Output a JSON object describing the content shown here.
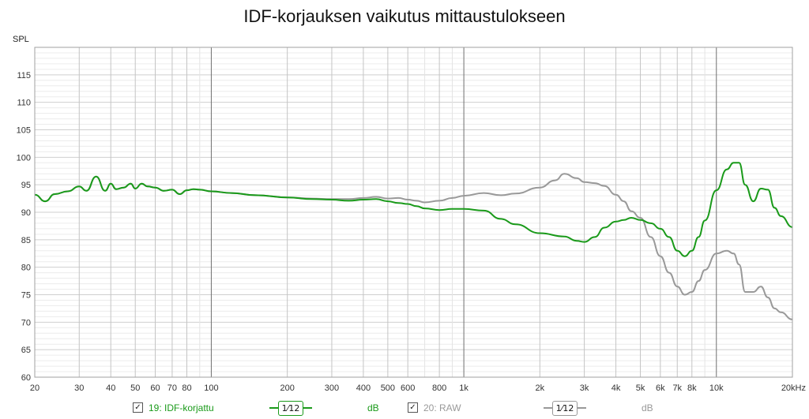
{
  "title": "IDF-korjauksen vaikutus mittaustulokseen",
  "colors": {
    "corrected": "#1a9a1a",
    "raw": "#999999"
  },
  "legend": {
    "items": [
      {
        "checkbox": "✓",
        "label": "19: IDF-korjattu",
        "smoothing": "1⁄12",
        "unit": "dB"
      },
      {
        "checkbox": "✓",
        "label": "20: RAW",
        "smoothing": "1⁄12",
        "unit": "dB"
      }
    ]
  },
  "chart_data": {
    "type": "line",
    "title": "IDF-korjauksen vaikutus mittaustulokseen",
    "ylabel": "SPL",
    "xlabel": "",
    "x_scale": "log",
    "xlim": [
      20,
      20000
    ],
    "ylim": [
      60,
      120
    ],
    "grid": true,
    "y_ticks": [
      "60",
      "65",
      "70",
      "75",
      "80",
      "85",
      "90",
      "95",
      "100",
      "105",
      "110",
      "115"
    ],
    "x_ticks": [
      {
        "v": 20,
        "t": "20"
      },
      {
        "v": 30,
        "t": "30"
      },
      {
        "v": 40,
        "t": "40"
      },
      {
        "v": 50,
        "t": "50"
      },
      {
        "v": 60,
        "t": "60"
      },
      {
        "v": 70,
        "t": "70"
      },
      {
        "v": 80,
        "t": "80"
      },
      {
        "v": 100,
        "t": "100"
      },
      {
        "v": 200,
        "t": "200"
      },
      {
        "v": 300,
        "t": "300"
      },
      {
        "v": 400,
        "t": "400"
      },
      {
        "v": 500,
        "t": "500"
      },
      {
        "v": 600,
        "t": "600"
      },
      {
        "v": 800,
        "t": "800"
      },
      {
        "v": 1000,
        "t": "1k"
      },
      {
        "v": 2000,
        "t": "2k"
      },
      {
        "v": 3000,
        "t": "3k"
      },
      {
        "v": 4000,
        "t": "4k"
      },
      {
        "v": 5000,
        "t": "5k"
      },
      {
        "v": 6000,
        "t": "6k"
      },
      {
        "v": 7000,
        "t": "7k"
      },
      {
        "v": 8000,
        "t": "8k"
      },
      {
        "v": 10000,
        "t": "10k"
      },
      {
        "v": 20000,
        "t": "20kHz"
      }
    ],
    "series": [
      {
        "name": "19: IDF-korjattu",
        "x": [
          20,
          22,
          24,
          27,
          30,
          32,
          35,
          38,
          40,
          42,
          45,
          48,
          50,
          53,
          56,
          60,
          65,
          70,
          75,
          80,
          85,
          90,
          100,
          120,
          150,
          200,
          250,
          300,
          350,
          400,
          450,
          500,
          550,
          600,
          650,
          700,
          800,
          900,
          1000,
          1200,
          1400,
          1600,
          2000,
          2500,
          2800,
          3000,
          3300,
          3600,
          4000,
          4300,
          4600,
          5000,
          5500,
          6000,
          6500,
          7000,
          7500,
          8000,
          8500,
          9000,
          10000,
          11000,
          11700,
          12300,
          13000,
          14000,
          15000,
          16000,
          17000,
          18000,
          20000
        ],
        "y": [
          93.2,
          92.0,
          93.3,
          93.8,
          94.7,
          93.9,
          96.5,
          93.9,
          95.2,
          94.2,
          94.5,
          95.2,
          94.3,
          95.2,
          94.7,
          94.5,
          93.9,
          94.1,
          93.3,
          94.0,
          94.2,
          94.1,
          93.8,
          93.5,
          93.1,
          92.7,
          92.4,
          92.3,
          92.1,
          92.3,
          92.4,
          92.0,
          91.7,
          91.5,
          91.1,
          90.7,
          90.4,
          90.6,
          90.6,
          90.3,
          88.8,
          87.8,
          86.2,
          85.6,
          84.8,
          84.6,
          85.5,
          87.2,
          88.3,
          88.6,
          89.0,
          88.6,
          88.0,
          87.0,
          85.5,
          83.0,
          82.0,
          83.0,
          85.5,
          88.5,
          94.0,
          97.8,
          99.0,
          99.0,
          95.0,
          92.0,
          94.3,
          94.1,
          90.8,
          89.3,
          87.3
        ]
      },
      {
        "name": "20: RAW",
        "x": [
          20,
          22,
          24,
          27,
          30,
          32,
          35,
          38,
          40,
          42,
          45,
          48,
          50,
          53,
          56,
          60,
          65,
          70,
          75,
          80,
          85,
          90,
          100,
          120,
          150,
          200,
          250,
          300,
          350,
          400,
          450,
          500,
          550,
          600,
          650,
          700,
          800,
          900,
          1000,
          1200,
          1400,
          1600,
          2000,
          2300,
          2500,
          2800,
          3000,
          3300,
          3600,
          4000,
          4300,
          4600,
          5000,
          5500,
          6000,
          6500,
          7000,
          7500,
          8000,
          8500,
          9000,
          10000,
          11000,
          11700,
          12300,
          13000,
          14000,
          15000,
          16000,
          17000,
          18000,
          20000
        ],
        "y": [
          93.2,
          92.0,
          93.3,
          93.8,
          94.7,
          93.9,
          96.5,
          93.9,
          95.2,
          94.2,
          94.5,
          95.2,
          94.3,
          95.2,
          94.7,
          94.5,
          93.9,
          94.1,
          93.3,
          94.0,
          94.2,
          94.1,
          93.8,
          93.5,
          93.1,
          92.7,
          92.5,
          92.4,
          92.4,
          92.6,
          92.8,
          92.5,
          92.6,
          92.3,
          92.1,
          91.8,
          92.1,
          92.6,
          93.0,
          93.5,
          93.1,
          93.4,
          94.5,
          95.8,
          97.0,
          96.2,
          95.5,
          95.3,
          94.8,
          93.2,
          92.0,
          90.2,
          89.0,
          85.5,
          82.0,
          79.0,
          76.5,
          75.0,
          75.5,
          77.5,
          79.5,
          82.5,
          83.0,
          82.5,
          80.5,
          75.5,
          75.5,
          76.5,
          74.5,
          72.5,
          71.8,
          70.5
        ]
      }
    ]
  }
}
